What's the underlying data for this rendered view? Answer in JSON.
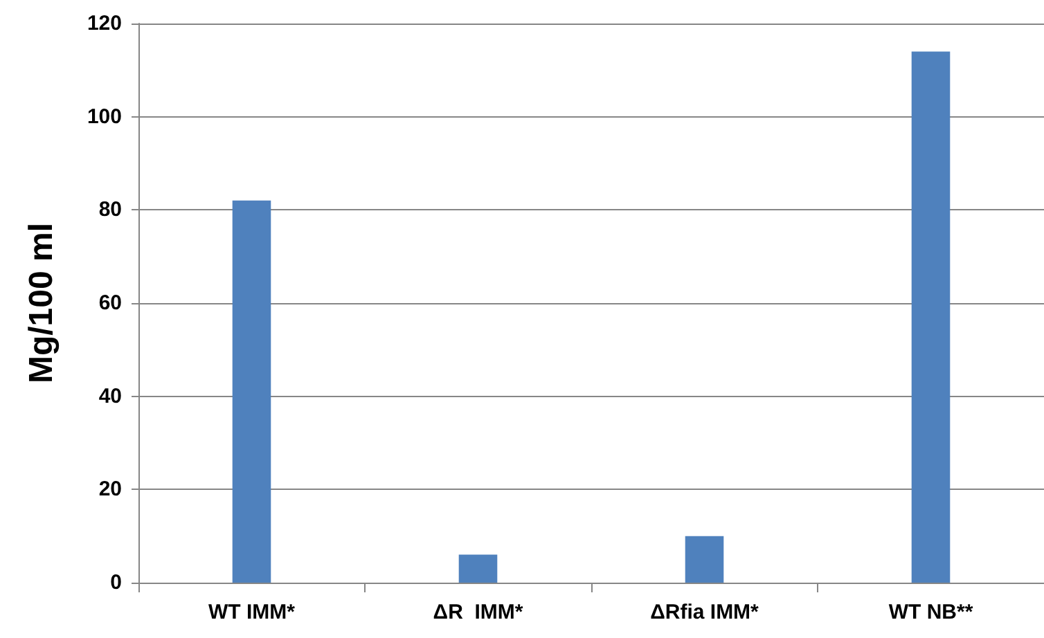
{
  "chart_data": {
    "type": "bar",
    "ylabel": "Mg/100 ml",
    "categories": [
      "WT IMM*",
      "ΔR  IMM*",
      "ΔRfia IMM*",
      "WT NB**"
    ],
    "values": [
      82,
      6,
      10,
      114
    ],
    "color": "#4f81bd",
    "ylim": [
      0,
      120
    ],
    "yticks": [
      0,
      20,
      40,
      60,
      80,
      100,
      120
    ],
    "grid": "y"
  }
}
